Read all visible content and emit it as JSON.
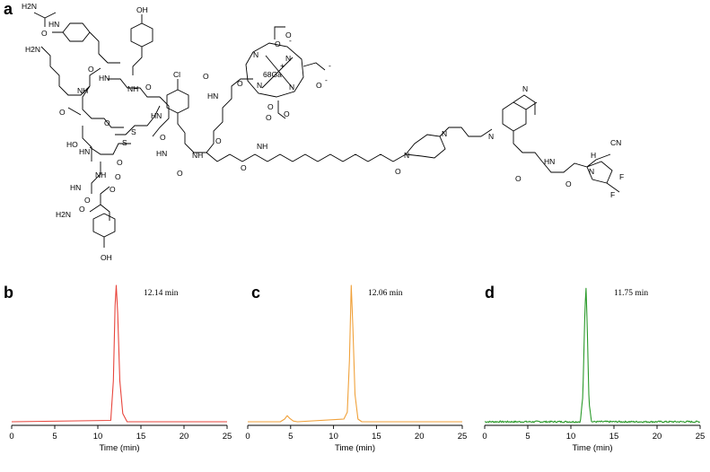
{
  "panels": {
    "a": "a",
    "b": "b",
    "c": "c",
    "d": "d"
  },
  "structure": {
    "labels": [
      "H2N",
      "O",
      "HN",
      "OH",
      "H2N",
      "HN",
      "NH",
      "O",
      "O",
      "NH",
      "O",
      "HN",
      "O",
      "Cl",
      "HN",
      "O",
      "O",
      "HN",
      "O",
      "O",
      "S",
      "S",
      "HO",
      "NH",
      "HN",
      "O",
      "NH",
      "O",
      "NH",
      "O",
      "O",
      "HN",
      "O",
      "H2N",
      "O",
      "OH",
      "O",
      "N",
      "N",
      "N",
      "N",
      "68Ga",
      "+",
      "O",
      "O",
      "O",
      "-",
      "O",
      "-",
      "O",
      "O",
      "-",
      "N",
      "N",
      "O",
      "HN",
      "O",
      "N",
      "N",
      "CN",
      "H",
      "N",
      "O",
      "F",
      "F"
    ],
    "ga_color": "#e8141b"
  },
  "chart_data": [
    {
      "type": "line",
      "panel": "b",
      "annotation": "12.14 min",
      "xlabel": "Time (min)",
      "xlim": [
        0,
        25
      ],
      "xticks": [
        0,
        5,
        10,
        15,
        20,
        25
      ],
      "color": "#e8453c",
      "series": [
        {
          "x": [
            0,
            11.5,
            11.8,
            12.0,
            12.14,
            12.3,
            12.55,
            12.9,
            13.4,
            25
          ],
          "y": [
            0,
            0.01,
            0.3,
            0.85,
            1.0,
            0.8,
            0.3,
            0.06,
            0.0,
            0
          ]
        }
      ]
    },
    {
      "type": "line",
      "panel": "c",
      "annotation": "12.06 min",
      "xlabel": "Time (min)",
      "xlim": [
        0,
        25
      ],
      "xticks": [
        0,
        5,
        10,
        15,
        20,
        25
      ],
      "color": "#f0a13a",
      "series": [
        {
          "x": [
            0,
            3.8,
            4.3,
            4.6,
            4.9,
            5.3,
            5.8,
            11.2,
            11.6,
            11.85,
            12.06,
            12.25,
            12.5,
            12.85,
            13.3,
            25
          ],
          "y": [
            0,
            0.0,
            0.02,
            0.045,
            0.025,
            0.005,
            0.0,
            0.02,
            0.07,
            0.45,
            1.0,
            0.7,
            0.2,
            0.02,
            0.0,
            0
          ]
        }
      ]
    },
    {
      "type": "line",
      "panel": "d",
      "annotation": "11.75 min",
      "xlabel": "Time (min)",
      "xlim": [
        0,
        25
      ],
      "xticks": [
        0,
        5,
        10,
        15,
        20,
        25
      ],
      "color": "#2a9a2a",
      "noisy": true,
      "series": [
        {
          "x": [
            0,
            11.1,
            11.4,
            11.6,
            11.75,
            11.9,
            12.1,
            12.4,
            25
          ],
          "y": [
            0,
            0.0,
            0.2,
            0.75,
            1.0,
            0.7,
            0.15,
            0.0,
            0
          ]
        }
      ]
    }
  ]
}
